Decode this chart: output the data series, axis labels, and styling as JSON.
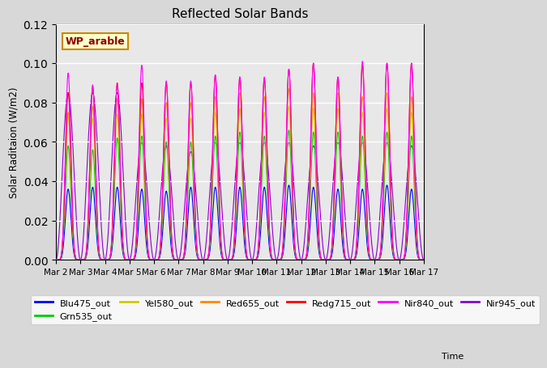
{
  "title": "Reflected Solar Bands",
  "ylabel": "Solar Raditaion (W/m2)",
  "annotation": "WP_arable",
  "ylim": [
    0,
    0.12
  ],
  "fig_bg": "#d8d8d8",
  "plot_bg": "#e8e8e8",
  "series_order": [
    "Blu475_out",
    "Grn535_out",
    "Yel580_out",
    "Red655_out",
    "Redg715_out",
    "Nir840_out",
    "Nir945_out"
  ],
  "series_colors": {
    "Blu475_out": "#0000ff",
    "Grn535_out": "#00cc00",
    "Yel580_out": "#cccc00",
    "Red655_out": "#ff8800",
    "Redg715_out": "#ff0000",
    "Nir840_out": "#ff00ff",
    "Nir945_out": "#8800cc"
  },
  "series_zorder": {
    "Blu475_out": 3,
    "Grn535_out": 4,
    "Yel580_out": 5,
    "Red655_out": 6,
    "Redg715_out": 7,
    "Nir840_out": 8,
    "Nir945_out": 2
  },
  "xtick_labels": [
    "Mar 2",
    "Mar 3",
    "Mar 4",
    "Mar 5",
    "Mar 6",
    "Mar 7",
    "Mar 8",
    "Mar 9",
    "Mar 10",
    "Mar 11",
    "Mar 12",
    "Mar 13",
    "Mar 14",
    "Mar 15",
    "Mar 16",
    "Mar 17"
  ],
  "num_days": 15,
  "peaks": {
    "Blu475_out": [
      0.036,
      0.037,
      0.037,
      0.036,
      0.035,
      0.037,
      0.037,
      0.037,
      0.037,
      0.038,
      0.037,
      0.036,
      0.036,
      0.038,
      0.036
    ],
    "Grn535_out": [
      0.058,
      0.056,
      0.062,
      0.063,
      0.06,
      0.06,
      0.063,
      0.065,
      0.063,
      0.066,
      0.065,
      0.065,
      0.063,
      0.065,
      0.063
    ],
    "Yel580_out": [
      0.073,
      0.072,
      0.074,
      0.074,
      0.072,
      0.072,
      0.075,
      0.077,
      0.075,
      0.078,
      0.077,
      0.077,
      0.075,
      0.077,
      0.075
    ],
    "Red655_out": [
      0.075,
      0.078,
      0.082,
      0.082,
      0.08,
      0.08,
      0.083,
      0.085,
      0.083,
      0.087,
      0.085,
      0.085,
      0.083,
      0.085,
      0.083
    ],
    "Redg715_out": [
      0.085,
      0.088,
      0.09,
      0.09,
      0.09,
      0.09,
      0.094,
      0.093,
      0.092,
      0.097,
      0.1,
      0.093,
      0.099,
      0.1,
      0.1
    ],
    "Nir840_out": [
      0.095,
      0.089,
      0.089,
      0.099,
      0.091,
      0.091,
      0.094,
      0.093,
      0.093,
      0.097,
      0.1,
      0.093,
      0.101,
      0.1,
      0.1
    ],
    "Nir945_out": [
      0.085,
      0.085,
      0.085,
      0.06,
      0.058,
      0.055,
      0.06,
      0.06,
      0.06,
      0.06,
      0.058,
      0.06,
      0.06,
      0.06,
      0.058
    ]
  },
  "legend_labels": [
    "Blu475_out",
    "Grn535_out",
    "Yel580_out",
    "Red655_out",
    "Redg715_out",
    "Nir840_out",
    "Nir945_out"
  ]
}
